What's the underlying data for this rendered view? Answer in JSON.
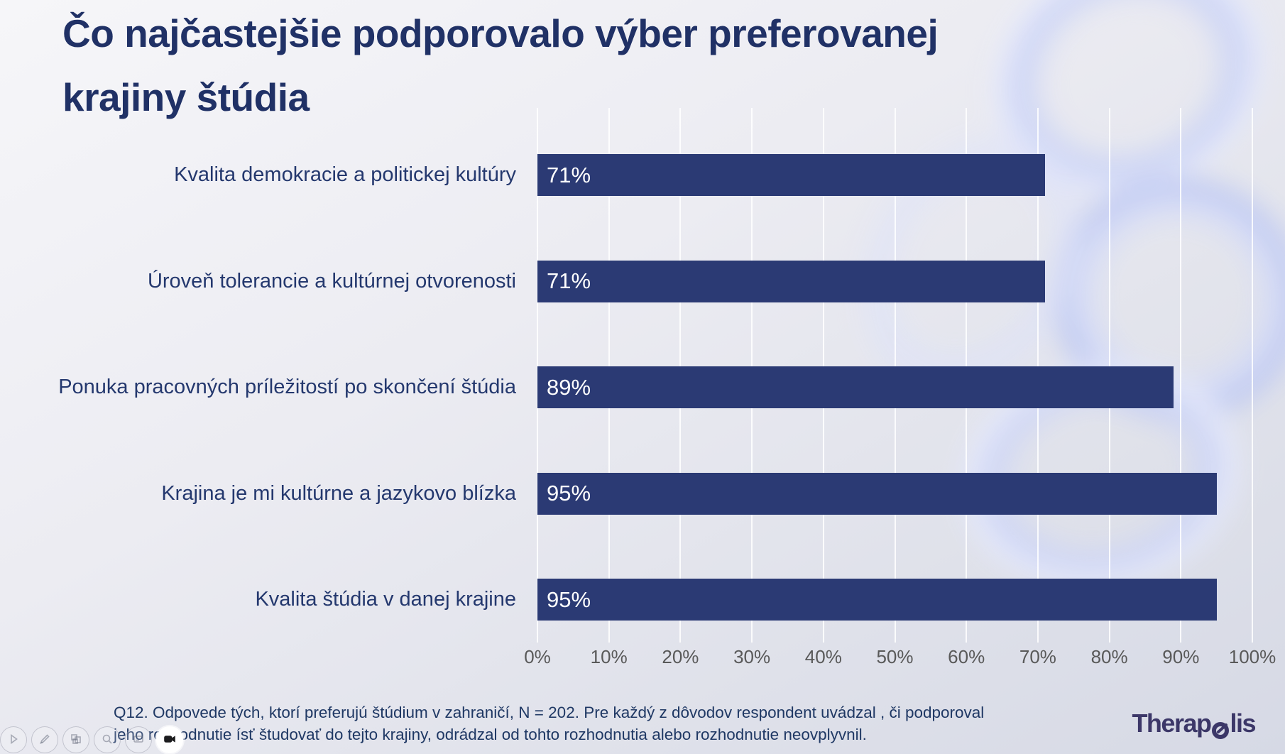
{
  "slide": {
    "title_line1": "Čo najčastejšie podporovalo výber preferovanej",
    "title_line2": "krajiny štúdia",
    "footnote_line1": "Q12. Odpovede tých, ktorí preferujú štúdium v zahraničí, N = 202. Pre každý z dôvodov respondent uvádzal , či podporoval",
    "footnote_line2": "jeho rozhodnutie ísť študovať do tejto krajiny, odrádzal od tohto rozhodnutia alebo rozhodnutie neovplyvnil."
  },
  "chart_data": {
    "type": "bar",
    "orientation": "horizontal",
    "categories": [
      "Kvalita demokracie a politickej kultúry",
      "Úroveň tolerancie a kultúrnej otvorenosti",
      "Ponuka pracovných príležitostí po skončení štúdia",
      "Krajina je mi kultúrne a jazykovo blízka",
      "Kvalita štúdia v danej krajine"
    ],
    "values": [
      71,
      71,
      89,
      95,
      95
    ],
    "value_labels": [
      "71%",
      "71%",
      "89%",
      "95%",
      "95%"
    ],
    "x_ticks": [
      "0%",
      "10%",
      "20%",
      "30%",
      "40%",
      "50%",
      "60%",
      "70%",
      "80%",
      "90%",
      "100%"
    ],
    "xlim": [
      0,
      100
    ],
    "grid": true,
    "legend": "none",
    "bar_color": "#2b3a74",
    "value_label_color": "#ffffff",
    "tick_label_color": "#595959",
    "category_label_color": "#24386e"
  },
  "logo": {
    "prefix": "Therap",
    "stylized_letter": "o",
    "suffix": "lis",
    "full_text": "Therapolis",
    "color": "#3c3768"
  },
  "toolbar": {
    "buttons": [
      {
        "icon": "next-slide-icon"
      },
      {
        "icon": "pen-icon"
      },
      {
        "icon": "all-slides-icon"
      },
      {
        "icon": "zoom-icon"
      },
      {
        "icon": "subtitles-icon"
      },
      {
        "icon": "camera-icon"
      }
    ]
  },
  "colors": {
    "title": "#203166",
    "footnote": "#1f3864",
    "background_top": "#f6f6f9",
    "background_bottom": "#d6d9e5",
    "decor_swirl": "#c9d2f6",
    "gridline": "#ffffff"
  }
}
